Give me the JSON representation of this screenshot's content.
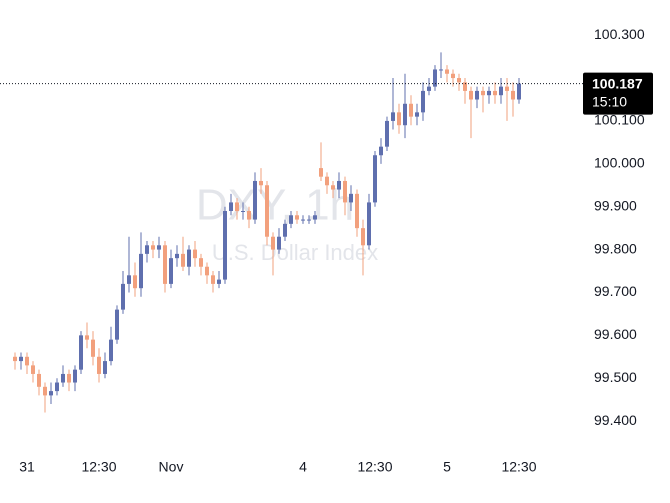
{
  "chart_data": {
    "type": "candlestick",
    "watermark": "DXY, 1h",
    "watermark_subtitle": "U.S. Dollar Index",
    "up_color": "#5f6fae",
    "down_color": "#f2a07d",
    "categories": [
      null,
      null,
      "31",
      null,
      null,
      null,
      null,
      null,
      null,
      null,
      null,
      null,
      null,
      null,
      "12:30",
      null,
      null,
      null,
      null,
      null,
      null,
      null,
      null,
      null,
      null,
      null,
      "Nov",
      null,
      null,
      null,
      null,
      null,
      null,
      null,
      null,
      null,
      null,
      null,
      null,
      null,
      null,
      null,
      null,
      null,
      null,
      null,
      null,
      null,
      "4",
      null,
      null,
      null,
      null,
      null,
      null,
      null,
      null,
      null,
      null,
      null,
      "12:30",
      null,
      null,
      null,
      null,
      null,
      null,
      null,
      null,
      null,
      null,
      null,
      "5",
      null,
      null,
      null,
      null,
      null,
      null,
      null,
      null,
      null,
      null,
      null,
      "12:30"
    ],
    "open": [
      99.55,
      99.54,
      99.55,
      99.53,
      99.51,
      99.48,
      99.46,
      99.47,
      99.49,
      99.51,
      99.49,
      99.52,
      99.6,
      99.59,
      99.55,
      99.51,
      99.54,
      99.59,
      99.66,
      99.72,
      99.74,
      99.71,
      99.79,
      99.81,
      99.8,
      99.81,
      99.72,
      99.78,
      99.79,
      99.76,
      99.8,
      99.78,
      99.76,
      99.74,
      99.72,
      99.73,
      99.89,
      99.91,
      99.89,
      99.89,
      99.87,
      99.96,
      99.95,
      99.83,
      99.8,
      99.83,
      99.86,
      99.88,
      99.87,
      99.87,
      99.87,
      99.99,
      99.97,
      99.95,
      99.94,
      99.96,
      99.91,
      99.93,
      99.85,
      99.81,
      99.91,
      100.02,
      100.04,
      100.1,
      100.12,
      100.09,
      100.14,
      100.11,
      100.12,
      100.17,
      100.18,
      100.22,
      100.22,
      100.21,
      100.2,
      100.19,
      100.17,
      100.15,
      100.17,
      100.16,
      100.17,
      100.16,
      100.18,
      100.17,
      100.15
    ],
    "high": [
      99.56,
      99.56,
      99.56,
      99.54,
      99.52,
      99.49,
      99.49,
      99.5,
      99.53,
      99.52,
      99.53,
      99.61,
      99.63,
      99.61,
      99.57,
      99.56,
      99.62,
      99.67,
      99.75,
      99.83,
      99.77,
      99.84,
      99.82,
      99.82,
      99.83,
      99.82,
      99.8,
      99.81,
      99.83,
      99.81,
      99.82,
      99.79,
      99.77,
      99.75,
      99.75,
      99.9,
      99.93,
      99.92,
      99.91,
      99.9,
      99.98,
      99.99,
      99.96,
      99.84,
      99.85,
      99.87,
      99.89,
      99.89,
      99.88,
      99.88,
      99.89,
      100.05,
      99.98,
      99.96,
      99.98,
      99.97,
      99.95,
      99.94,
      99.87,
      99.93,
      100.03,
      100.06,
      100.11,
      100.2,
      100.14,
      100.21,
      100.16,
      100.14,
      100.19,
      100.2,
      100.23,
      100.26,
      100.23,
      100.22,
      100.21,
      100.2,
      100.18,
      100.18,
      100.18,
      100.18,
      100.19,
      100.2,
      100.2,
      100.19,
      100.2
    ],
    "low": [
      99.52,
      99.52,
      99.51,
      99.49,
      99.46,
      99.42,
      99.44,
      99.46,
      99.48,
      99.47,
      99.47,
      99.51,
      99.57,
      99.53,
      99.49,
      99.5,
      99.53,
      99.58,
      99.65,
      99.7,
      99.69,
      99.69,
      99.77,
      99.78,
      99.78,
      99.7,
      99.71,
      99.76,
      99.75,
      99.74,
      99.76,
      99.74,
      99.72,
      99.7,
      99.71,
      99.72,
      99.88,
      99.87,
      99.87,
      99.85,
      99.86,
      99.93,
      99.81,
      99.74,
      99.79,
      99.82,
      99.85,
      99.86,
      99.86,
      99.86,
      99.86,
      99.96,
      99.93,
      99.92,
      99.92,
      99.88,
      99.89,
      99.83,
      99.74,
      99.8,
      99.9,
      100.0,
      100.03,
      100.08,
      100.07,
      100.06,
      100.09,
      100.09,
      100.1,
      100.16,
      100.17,
      100.2,
      100.19,
      100.18,
      100.17,
      100.14,
      100.06,
      100.13,
      100.12,
      100.14,
      100.14,
      100.14,
      100.1,
      100.11,
      100.14
    ],
    "close": [
      99.54,
      99.55,
      99.53,
      99.51,
      99.48,
      99.46,
      99.47,
      99.49,
      99.51,
      99.49,
      99.52,
      99.6,
      99.59,
      99.55,
      99.51,
      99.54,
      99.59,
      99.66,
      99.72,
      99.74,
      99.71,
      99.79,
      99.81,
      99.8,
      99.81,
      99.72,
      99.78,
      99.79,
      99.76,
      99.8,
      99.78,
      99.76,
      99.74,
      99.72,
      99.73,
      99.89,
      99.91,
      99.89,
      99.89,
      99.87,
      99.96,
      99.95,
      99.83,
      99.8,
      99.83,
      99.86,
      99.88,
      99.87,
      99.87,
      99.87,
      99.88,
      99.97,
      99.95,
      99.94,
      99.96,
      99.91,
      99.93,
      99.85,
      99.81,
      99.91,
      100.02,
      100.04,
      100.1,
      100.12,
      100.09,
      100.14,
      100.11,
      100.12,
      100.17,
      100.18,
      100.22,
      100.22,
      100.21,
      100.2,
      100.19,
      100.17,
      100.15,
      100.17,
      100.16,
      100.17,
      100.16,
      100.18,
      100.17,
      100.15,
      100.187
    ],
    "last_price": 100.187,
    "countdown": "15:10",
    "ylim": [
      99.321,
      100.382
    ],
    "yticks": [
      {
        "value": 99.4,
        "label": "99.400"
      },
      {
        "value": 99.5,
        "label": "99.500"
      },
      {
        "value": 99.6,
        "label": "99.600"
      },
      {
        "value": 99.7,
        "label": "99.700"
      },
      {
        "value": 99.8,
        "label": "99.800"
      },
      {
        "value": 99.9,
        "label": "99.900"
      },
      {
        "value": 100.0,
        "label": "100.000"
      },
      {
        "value": 100.1,
        "label": "100.100"
      },
      {
        "value": 100.3,
        "label": "100.300"
      }
    ]
  }
}
